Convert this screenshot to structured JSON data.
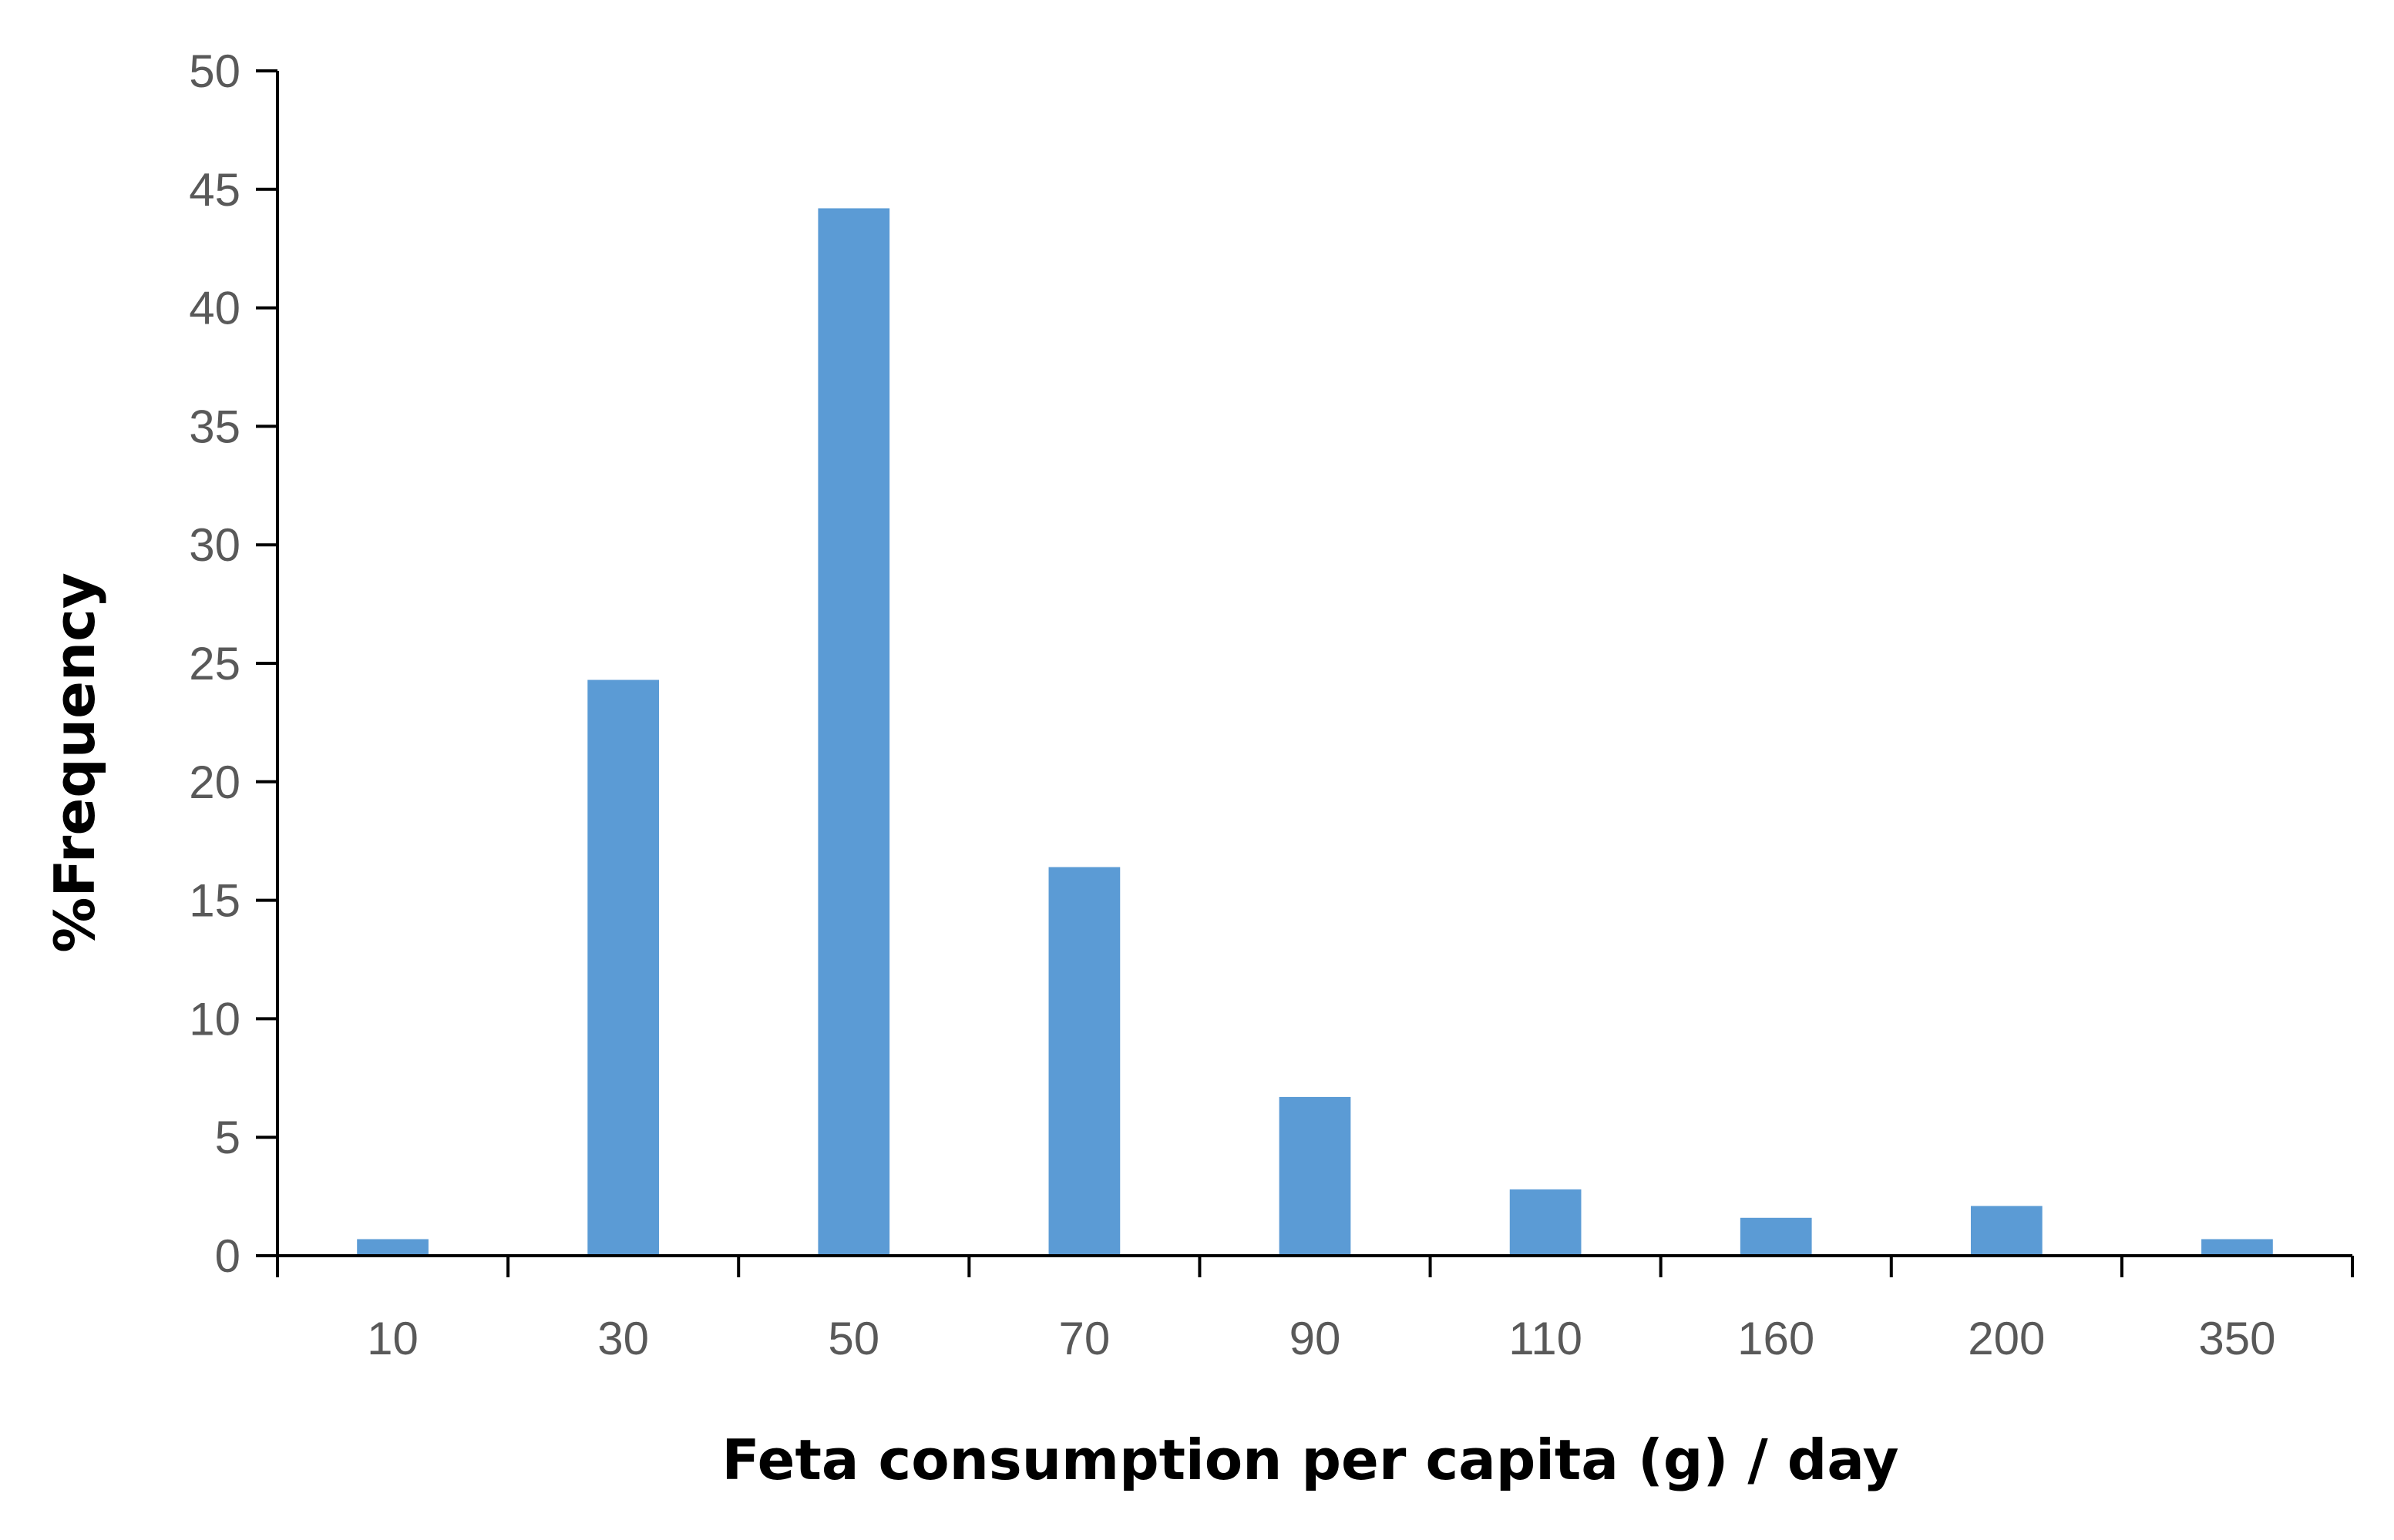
{
  "chart_data": {
    "type": "bar",
    "categories": [
      "10",
      "30",
      "50",
      "70",
      "90",
      "110",
      "160",
      "200",
      "350"
    ],
    "series": [
      {
        "values": [
          0.7,
          24.3,
          44.2,
          16.4,
          6.7,
          2.8,
          1.6,
          2.1,
          0.7
        ],
        "color": "#5b9bd5"
      }
    ],
    "title": "",
    "xlabel": "Feta consumption per capita (g) / day",
    "ylabel": "%Frequency",
    "ylim": [
      0,
      50
    ],
    "yticks": [
      "0",
      "5",
      "10",
      "15",
      "20",
      "25",
      "30",
      "35",
      "40",
      "45",
      "50"
    ],
    "grid": false,
    "legend": "none",
    "axis_color": "#000000",
    "tick_label_color": "#595959"
  }
}
